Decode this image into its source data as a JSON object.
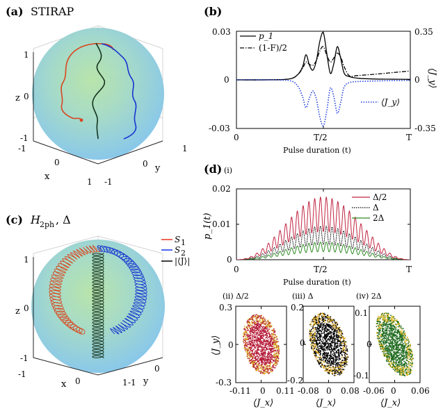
{
  "panels": {
    "a": {
      "letter": "(a)",
      "title": "STIRAP"
    },
    "b": {
      "letter": "(b)"
    },
    "c": {
      "letter": "(c)",
      "title": "H",
      "title_sub": "2ph",
      "title_tail": ", Δ"
    },
    "d": {
      "letter": "(d)",
      "sub_i": "(i)"
    }
  },
  "sphere_a": {
    "z_label": "z",
    "x_label": "x",
    "y_label": "y",
    "z_ticks": [
      "1",
      "0",
      "-1"
    ],
    "x_ticks": [
      "-1",
      "0",
      "1"
    ],
    "y_ticks": [
      "1",
      "0",
      "-1"
    ]
  },
  "sphere_c": {
    "z_label": "z",
    "x_label": "x",
    "y_label": "y",
    "z_ticks": [
      "1",
      "0",
      "-1"
    ],
    "x_ticks": [
      "-1",
      "0",
      "1"
    ],
    "y_ticks": [
      "0",
      "-1"
    ],
    "legend": [
      {
        "label": "S",
        "sub": "1",
        "color": "#e8341c"
      },
      {
        "label": "S",
        "sub": "2",
        "color": "#1533e8"
      },
      {
        "label": "|⟨J⟩|",
        "color": "#000000"
      }
    ],
    "colors": {
      "s1": "#d8451f",
      "s2": "#1633d0",
      "j": "#14321c"
    }
  },
  "chart_data": [
    {
      "panel": "b",
      "type": "line",
      "xlabel": "Pulse duration (t)",
      "x_ticks": [
        "0",
        "T/2",
        "T"
      ],
      "y_left_ticks": [
        "0.03",
        "0",
        "-0.03"
      ],
      "y_right_ticks": [
        "0.35",
        "0",
        "-0.35"
      ],
      "ylabel_right": "⟨J_y⟩",
      "ylim_left": [
        -0.03,
        0.03
      ],
      "ylim_right": [
        -0.35,
        0.35
      ],
      "series": [
        {
          "name": "p_1",
          "style": "solid",
          "color": "#000000",
          "x": [
            0,
            0.15,
            0.3,
            0.35,
            0.38,
            0.4,
            0.42,
            0.44,
            0.46,
            0.48,
            0.5,
            0.52,
            0.54,
            0.56,
            0.58,
            0.6,
            0.62,
            0.65,
            0.7,
            0.8,
            0.9,
            1.0
          ],
          "y": [
            0,
            0,
            0.0005,
            0.003,
            0.008,
            0.0155,
            0.009,
            0.006,
            0.012,
            0.024,
            0.029,
            0.016,
            0.004,
            0.01,
            0.0205,
            0.013,
            0.004,
            0.002,
            0.001,
            0.0005,
            0.0004,
            0.0003
          ]
        },
        {
          "name": "(1-F)/2",
          "style": "dashdot",
          "color": "#000000",
          "x": [
            0,
            0.15,
            0.3,
            0.35,
            0.38,
            0.4,
            0.42,
            0.44,
            0.46,
            0.48,
            0.5,
            0.52,
            0.54,
            0.56,
            0.58,
            0.6,
            0.62,
            0.65,
            0.7,
            0.8,
            0.9,
            1.0
          ],
          "y": [
            0,
            0,
            0.0005,
            0.003,
            0.007,
            0.011,
            0.0095,
            0.009,
            0.012,
            0.018,
            0.0205,
            0.015,
            0.011,
            0.0135,
            0.0165,
            0.014,
            0.008,
            0.0025,
            0.0027,
            0.0035,
            0.0045,
            0.0055
          ]
        },
        {
          "name": "⟨J_y⟩",
          "style": "dotted",
          "color": "#1f3fe0",
          "axis": "right",
          "x": [
            0,
            0.15,
            0.3,
            0.35,
            0.38,
            0.4,
            0.42,
            0.44,
            0.46,
            0.48,
            0.5,
            0.52,
            0.54,
            0.56,
            0.58,
            0.6,
            0.62,
            0.65,
            0.7,
            0.8,
            0.9,
            1.0
          ],
          "y": [
            0,
            0,
            -0.005,
            -0.04,
            -0.12,
            -0.2,
            -0.13,
            -0.08,
            -0.14,
            -0.27,
            -0.33,
            -0.22,
            -0.06,
            -0.12,
            -0.24,
            -0.16,
            -0.05,
            -0.02,
            -0.012,
            -0.008,
            -0.005,
            -0.003
          ]
        }
      ]
    },
    {
      "panel": "d-i",
      "type": "line",
      "ylabel": "p_1(t)",
      "xlabel": "Pulse duration (t)",
      "x_ticks": [
        "0",
        "T/2",
        "T"
      ],
      "y_ticks": [
        "0.02",
        "0.01",
        "0"
      ],
      "ylim": [
        0,
        0.02
      ],
      "oscillation_periods": 30,
      "series": [
        {
          "name": "Δ/2",
          "color": "#c0233f",
          "style": "solid",
          "peak": 0.0177
        },
        {
          "name": "Δ",
          "color": "#000000",
          "style": "dotted",
          "peak": 0.0095
        },
        {
          "name": "2Δ",
          "color": "#2e8b22",
          "style": "solid",
          "peak": 0.005
        }
      ]
    },
    {
      "panel": "d-ii",
      "type": "scatter",
      "title": "(ii) Δ/2",
      "xlabel": "⟨J_x⟩",
      "ylabel": "⟨J_y⟩",
      "x_ticks": [
        "-0.11",
        "0",
        "0.11"
      ],
      "y_ticks": [
        "0.3",
        "0",
        "-0.3"
      ],
      "xlim": [
        -0.11,
        0.11
      ],
      "ylim": [
        -0.3,
        0.3
      ],
      "fill_color": "#b51a37",
      "edge_color": "#d8a520",
      "semi_x": 0.075,
      "semi_y": 0.24,
      "tilt_deg": 12
    },
    {
      "panel": "d-iii",
      "type": "scatter",
      "title": "(iii) Δ",
      "xlabel": "⟨J_x⟩",
      "x_ticks": [
        "-0.08",
        "0",
        "0.08"
      ],
      "y_ticks": [
        "0.2",
        "0",
        "-0.2"
      ],
      "xlim": [
        -0.08,
        0.08
      ],
      "ylim": [
        -0.2,
        0.2
      ],
      "fill_color": "#000000",
      "edge_color": "#d8a520",
      "semi_x": 0.055,
      "semi_y": 0.17,
      "tilt_deg": 18
    },
    {
      "panel": "d-iv",
      "type": "scatter",
      "title": "(iv) 2Δ",
      "xlabel": "⟨J_x⟩",
      "x_ticks": [
        "-0.06",
        "0",
        "0.06"
      ],
      "y_ticks": [
        "0.1",
        "0",
        "-0.1"
      ],
      "xlim": [
        -0.06,
        0.06
      ],
      "ylim": [
        -0.13,
        0.13
      ],
      "fill_color": "#1f6b1f",
      "edge_color": "#d8b520",
      "semi_x": 0.035,
      "semi_y": 0.115,
      "tilt_deg": 22
    }
  ]
}
